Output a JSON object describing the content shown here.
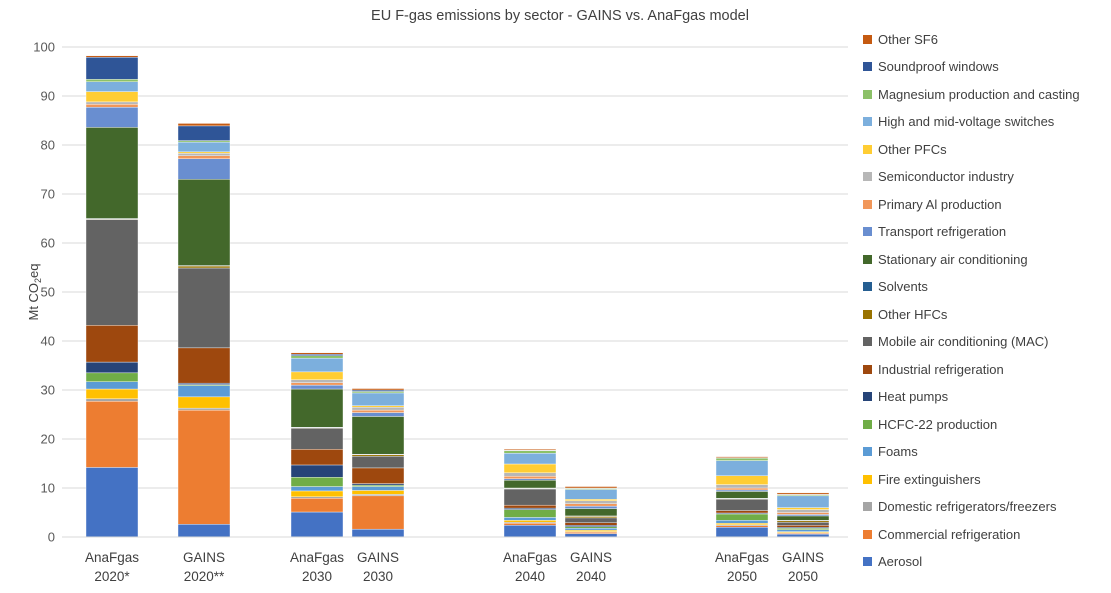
{
  "chart_data": {
    "type": "bar",
    "stacked": true,
    "title": "EU F-gas emissions by sector - GAINS vs. AnaFgas model",
    "ylabel": "Mt CO2eq",
    "ylim": [
      0,
      100
    ],
    "yticks": [
      "0",
      "10",
      "20",
      "30",
      "40",
      "50",
      "60",
      "70",
      "80",
      "90",
      "100"
    ],
    "grid": true,
    "legend_position": "right",
    "categories": [
      [
        "AnaFgas",
        "2020*"
      ],
      [
        "GAINS",
        "2020**"
      ],
      [
        "AnaFgas",
        "2030"
      ],
      [
        "GAINS",
        "2030"
      ],
      [
        "AnaFgas",
        "2040"
      ],
      [
        "GAINS",
        "2040"
      ],
      [
        "AnaFgas",
        "2050"
      ],
      [
        "GAINS",
        "2050"
      ]
    ],
    "series": [
      {
        "name": "Aerosol",
        "color": "#4472C4",
        "values": [
          14.2,
          2.6,
          5.1,
          1.6,
          2.4,
          0.7,
          2.0,
          0.6
        ]
      },
      {
        "name": "Commercial refrigeration",
        "color": "#ED7D31",
        "values": [
          13.5,
          23.3,
          2.8,
          6.8,
          0.4,
          0.3,
          0.3,
          0.2
        ]
      },
      {
        "name": "Domestic refrigerators/freezers",
        "color": "#A5A5A5",
        "values": [
          0.5,
          0.4,
          0.3,
          0.3,
          0.2,
          0.1,
          0.2,
          0.1
        ]
      },
      {
        "name": "Fire extinguishers",
        "color": "#FFC000",
        "values": [
          2.0,
          2.3,
          1.2,
          0.8,
          0.4,
          0.3,
          0.3,
          0.2
        ]
      },
      {
        "name": "Foams",
        "color": "#5B9BD5",
        "values": [
          1.5,
          2.3,
          0.9,
          0.8,
          0.6,
          0.4,
          0.6,
          0.4
        ]
      },
      {
        "name": "HCFC-22 production",
        "color": "#70AD47",
        "values": [
          1.8,
          0.2,
          1.9,
          0.3,
          1.6,
          0.3,
          1.3,
          0.3
        ]
      },
      {
        "name": "Heat pumps",
        "color": "#264478",
        "values": [
          2.2,
          0.3,
          2.5,
          0.3,
          0.3,
          0.3,
          0.2,
          0.2
        ]
      },
      {
        "name": "Industrial refrigeration",
        "color": "#9E480E",
        "values": [
          7.5,
          7.2,
          3.2,
          3.2,
          0.6,
          0.5,
          0.5,
          0.4
        ]
      },
      {
        "name": "Mobile air conditioning (MAC)",
        "color": "#636363",
        "values": [
          21.6,
          16.3,
          4.3,
          2.4,
          3.3,
          1.0,
          2.3,
          0.6
        ]
      },
      {
        "name": "Other HFCs",
        "color": "#997300",
        "values": [
          0.1,
          0.4,
          0.1,
          0.3,
          0.1,
          0.3,
          0.1,
          0.3
        ]
      },
      {
        "name": "Solvents",
        "color": "#255E91",
        "values": [
          0.1,
          0.1,
          0.1,
          0.1,
          0.1,
          0.1,
          0.1,
          0.1
        ]
      },
      {
        "name": "Stationary air conditioning",
        "color": "#43682B",
        "values": [
          18.6,
          17.6,
          7.8,
          7.7,
          1.6,
          1.5,
          1.4,
          0.9
        ]
      },
      {
        "name": "Transport refrigeration",
        "color": "#698ED0",
        "values": [
          4.1,
          4.2,
          0.8,
          0.8,
          0.3,
          0.5,
          0.3,
          0.3
        ]
      },
      {
        "name": "Primary Al production",
        "color": "#F1975A",
        "values": [
          0.6,
          0.6,
          0.5,
          0.5,
          0.5,
          0.5,
          0.4,
          0.4
        ]
      },
      {
        "name": "Semiconductor industry",
        "color": "#B7B7B7",
        "values": [
          0.5,
          0.5,
          0.6,
          0.6,
          0.7,
          0.6,
          0.7,
          0.6
        ]
      },
      {
        "name": "Other PFCs",
        "color": "#FFCD33",
        "values": [
          2.1,
          0.3,
          1.6,
          0.3,
          1.8,
          0.3,
          1.8,
          0.4
        ]
      },
      {
        "name": "High and mid-voltage switches",
        "color": "#7CAFDD",
        "values": [
          2.0,
          2.0,
          2.8,
          2.6,
          2.2,
          2.0,
          3.1,
          2.4
        ]
      },
      {
        "name": "Magnesium production and casting",
        "color": "#8CC168",
        "values": [
          0.5,
          0.3,
          0.5,
          0.3,
          0.5,
          0.2,
          0.5,
          0.2
        ]
      },
      {
        "name": "Soundproof windows",
        "color": "#2F5597",
        "values": [
          4.5,
          3.0,
          0.3,
          0.3,
          0.1,
          0.1,
          0.1,
          0.1
        ]
      },
      {
        "name": "Other SF6",
        "color": "#C55A11",
        "values": [
          0.3,
          0.5,
          0.3,
          0.3,
          0.2,
          0.3,
          0.2,
          0.3
        ]
      }
    ]
  }
}
